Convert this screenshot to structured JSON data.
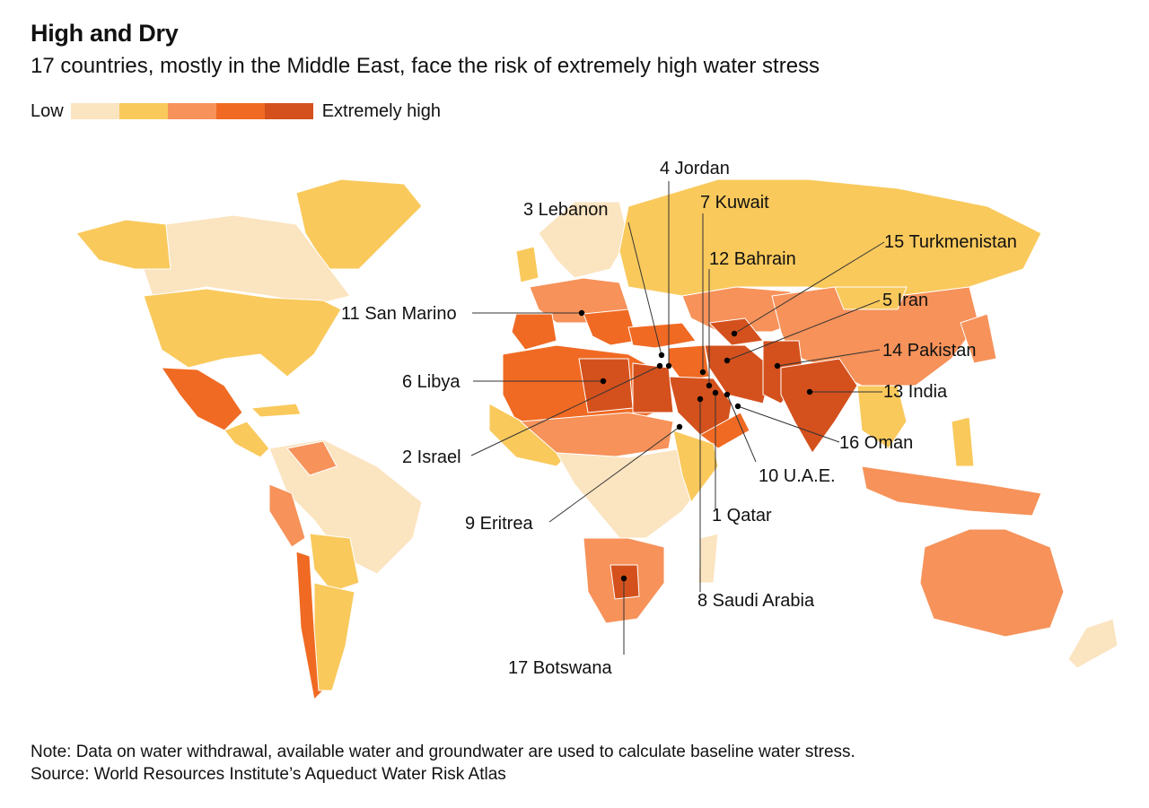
{
  "header": {
    "title": "High and Dry",
    "subtitle": "17 countries, mostly in the Middle East, face the risk of extremely high water stress"
  },
  "legend": {
    "low_label": "Low",
    "high_label": "Extremely high",
    "colors": [
      "#fbe4c0",
      "#f9c95c",
      "#f6925a",
      "#f06a23",
      "#d4511d"
    ]
  },
  "map": {
    "ocean": "#ffffff",
    "border": "#ffffff",
    "labels": [
      "1 Qatar",
      "2 Israel",
      "3 Lebanon",
      "4 Jordan",
      "5 Iran",
      "6 Libya",
      "7 Kuwait",
      "8 Saudi Arabia",
      "9 Eritrea",
      "10 U.A.E.",
      "11 San Marino",
      "12 Bahrain",
      "13 India",
      "14 Pakistan",
      "15 Turkmenistan",
      "16 Oman",
      "17 Botswana"
    ]
  },
  "footer": {
    "note": "Note: Data on water withdrawal, available water and groundwater are used to calculate baseline water stress.",
    "source": "Source: World Resources Institute’s Aqueduct Water Risk Atlas"
  }
}
